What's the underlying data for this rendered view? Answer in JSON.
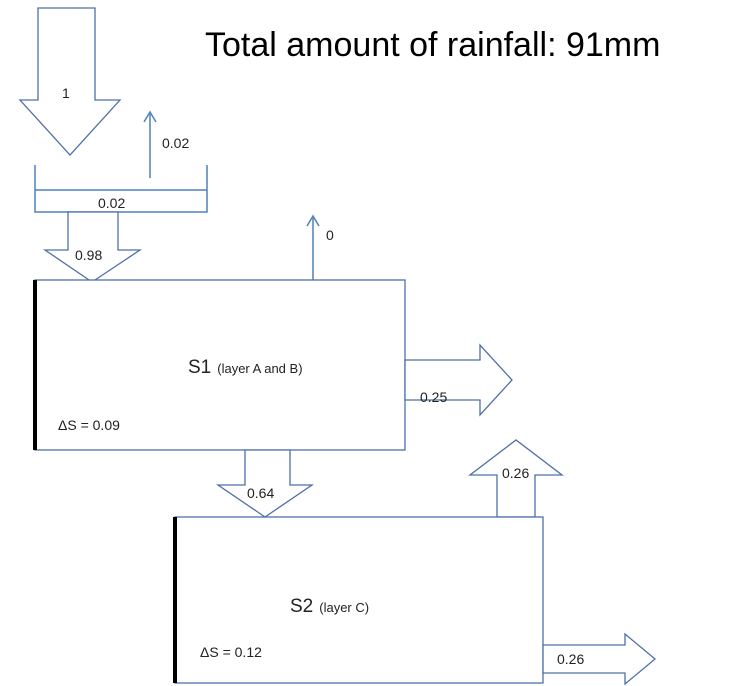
{
  "title": "Total amount of rainfall: 91mm",
  "flows": {
    "rainfall": 1,
    "evaporation_interception": 0.02,
    "interception": 0.02,
    "throughfall": 0.98,
    "evaporation_s1": 0,
    "lateral_s1": 0.25,
    "percolation": 0.64,
    "upward_s2": 0.26,
    "lateral_s2": 0.26
  },
  "stores": [
    {
      "name": "S1",
      "layer": "(layer A and B)",
      "delta": "ΔS = 0.09"
    },
    {
      "name": "S2",
      "layer": "(layer C)",
      "delta": "ΔS = 0.12"
    }
  ]
}
